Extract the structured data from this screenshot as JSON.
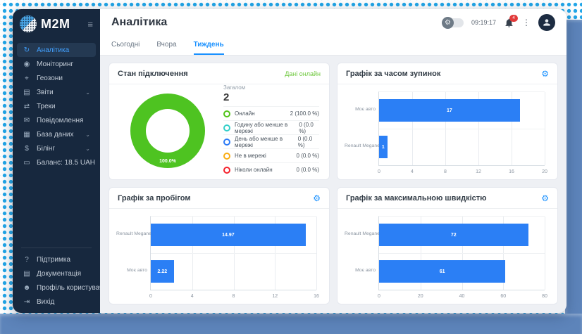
{
  "backdrop": {
    "dot_color": "#22a6e8",
    "band_color": "#5d84ba"
  },
  "sidebar": {
    "logo_text": "M2M",
    "items": [
      {
        "label": "Аналітика",
        "icon": "analytics-icon",
        "active": true,
        "chevron": false
      },
      {
        "label": "Моніторинг",
        "icon": "monitoring-icon",
        "active": false,
        "chevron": false
      },
      {
        "label": "Геозони",
        "icon": "geozones-icon",
        "active": false,
        "chevron": false
      },
      {
        "label": "Звіти",
        "icon": "reports-icon",
        "active": false,
        "chevron": true
      },
      {
        "label": "Треки",
        "icon": "tracks-icon",
        "active": false,
        "chevron": false
      },
      {
        "label": "Повідомлення",
        "icon": "messages-icon",
        "active": false,
        "chevron": false
      },
      {
        "label": "База даних",
        "icon": "database-icon",
        "active": false,
        "chevron": true
      },
      {
        "label": "Білінг",
        "icon": "billing-icon",
        "active": false,
        "chevron": true
      },
      {
        "label": "Баланс: 18.5 UAH",
        "icon": "balance-icon",
        "active": false,
        "chevron": false
      }
    ],
    "footer_items": [
      {
        "label": "Підтримка",
        "icon": "support-icon"
      },
      {
        "label": "Документація",
        "icon": "documentation-icon"
      },
      {
        "label": "Профіль користувача",
        "icon": "profile-icon"
      },
      {
        "label": "Вихід",
        "icon": "logout-icon"
      }
    ]
  },
  "header": {
    "title": "Аналітика",
    "time": "09:19:17",
    "notification_count": "4"
  },
  "tabs": [
    {
      "label": "Сьогодні",
      "active": false
    },
    {
      "label": "Вчора",
      "active": false
    },
    {
      "label": "Тиждень",
      "active": true
    }
  ],
  "connection_card": {
    "title": "Стан підключення",
    "link_label": "Дані онлайн",
    "total_label": "Загалом",
    "total_value": "2",
    "donut_label": "100.0%",
    "donut_color": "#4ec321"
  },
  "chart_data": [
    {
      "type": "pie",
      "title": "Стан підключення",
      "labels": [
        "Онлайн",
        "Годину або менше в мережі",
        "День або менше в мережі",
        "Не в мережі",
        "Ніколи онлайн"
      ],
      "values": [
        2,
        0,
        0,
        0,
        0
      ],
      "display_values": [
        "2 (100.0 %)",
        "0 (0.0 %)",
        "0 (0.0 %)",
        "0 (0.0 %)",
        "0 (0.0 %)"
      ],
      "colors": [
        "#52c41a",
        "#36cfc9",
        "#2f7cf6",
        "#faad14",
        "#f5222d"
      ],
      "center_label": "100.0%",
      "total": 2,
      "legend_position": "right"
    },
    {
      "type": "bar",
      "title": "Графік за часом зупинок",
      "orientation": "horizontal",
      "categories": [
        "Моє авто",
        "Renault Megane B"
      ],
      "values": [
        17,
        1
      ],
      "value_labels": [
        "17",
        "1"
      ],
      "xlim": [
        0,
        20
      ],
      "ticks": [
        0,
        4,
        8,
        12,
        16,
        20
      ],
      "bar_color": "#2b7ff5",
      "grid": true
    },
    {
      "type": "bar",
      "title": "Графік за пробігом",
      "orientation": "horizontal",
      "categories": [
        "Renault Megane B",
        "Моє авто"
      ],
      "values": [
        14.97,
        2.22
      ],
      "value_labels": [
        "14.97",
        "2.22"
      ],
      "xlim": [
        0,
        16
      ],
      "ticks": [
        0,
        4,
        8,
        12,
        16
      ],
      "bar_color": "#2b7ff5",
      "grid": true
    },
    {
      "type": "bar",
      "title": "Графік за максимальною швидкістю",
      "orientation": "horizontal",
      "categories": [
        "Renault Megane B",
        "Моє авто"
      ],
      "values": [
        72,
        61
      ],
      "value_labels": [
        "72",
        "61"
      ],
      "xlim": [
        0,
        80
      ],
      "ticks": [
        0,
        20,
        40,
        60,
        80
      ],
      "bar_color": "#2b7ff5",
      "grid": true
    }
  ]
}
